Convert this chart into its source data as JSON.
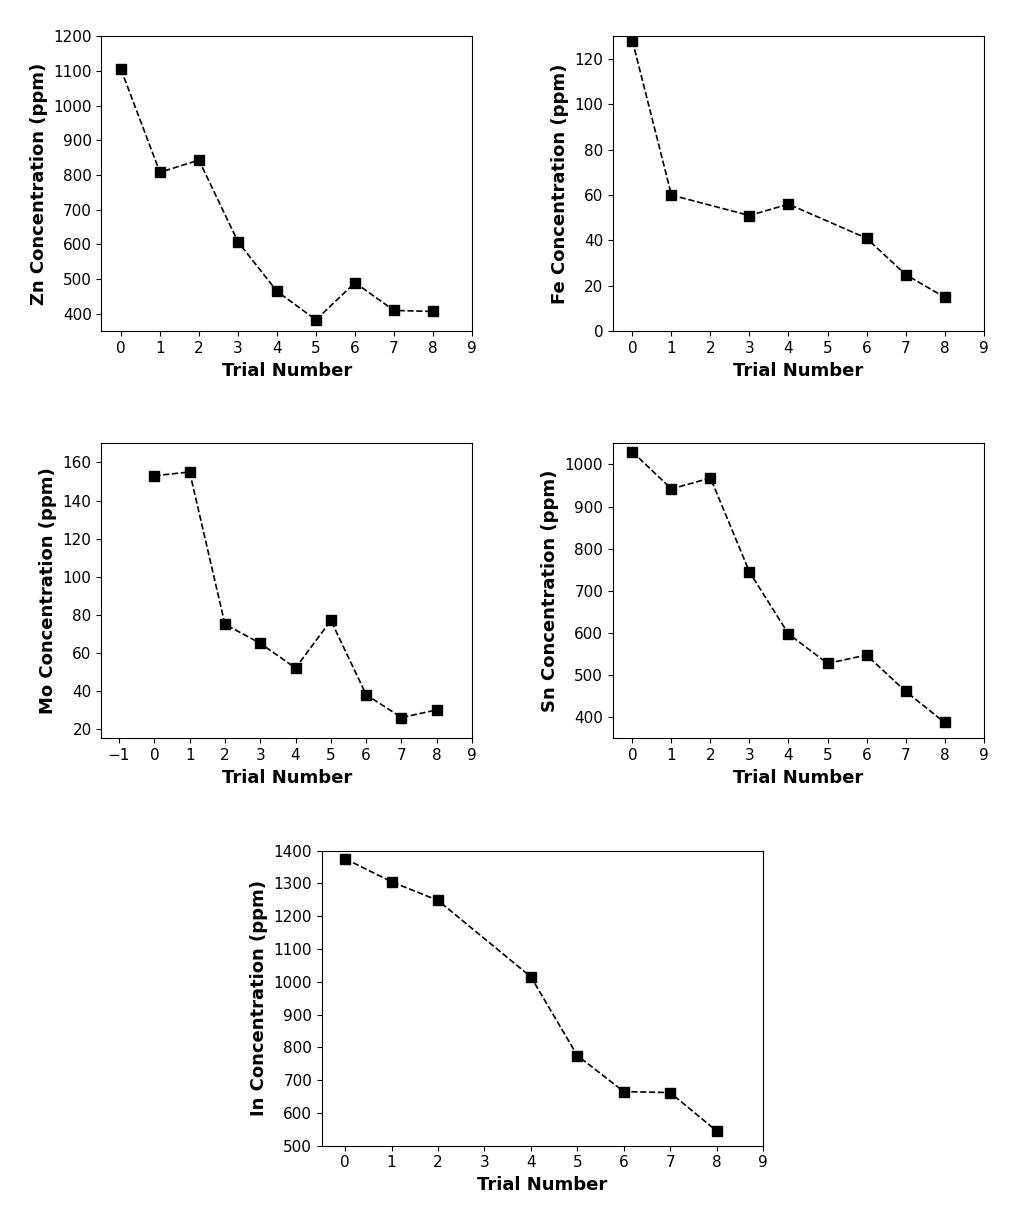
{
  "zn": {
    "x": [
      0,
      1,
      2,
      3,
      4,
      5,
      6,
      7,
      8
    ],
    "y": [
      1105,
      808,
      843,
      608,
      465,
      383,
      490,
      410,
      407
    ],
    "ylabel": "Zn Concentration (ppm)",
    "xlabel": "Trial Number",
    "xlim": [
      -0.5,
      9
    ],
    "ylim": [
      350,
      1200
    ],
    "yticks": [
      400,
      500,
      600,
      700,
      800,
      900,
      1000,
      1100,
      1200
    ],
    "xticks": [
      0,
      1,
      2,
      3,
      4,
      5,
      6,
      7,
      8,
      9
    ]
  },
  "fe": {
    "x": [
      0,
      1,
      3,
      4,
      6,
      7,
      8
    ],
    "y": [
      128,
      60,
      51,
      56,
      41,
      25,
      15
    ],
    "ylabel": "Fe Concentration (ppm)",
    "xlabel": "Trial Number",
    "xlim": [
      -0.5,
      9
    ],
    "ylim": [
      0,
      130
    ],
    "yticks": [
      0,
      20,
      40,
      60,
      80,
      100,
      120
    ],
    "xticks": [
      0,
      1,
      2,
      3,
      4,
      5,
      6,
      7,
      8,
      9
    ]
  },
  "mo": {
    "x": [
      0,
      1,
      2,
      3,
      4,
      5,
      6,
      7,
      8
    ],
    "y": [
      153,
      155,
      75,
      65,
      52,
      77,
      38,
      26,
      30
    ],
    "ylabel": "Mo Concentration (ppm)",
    "xlabel": "Trial Number",
    "xlim": [
      -1.5,
      9
    ],
    "ylim": [
      15,
      170
    ],
    "yticks": [
      20,
      40,
      60,
      80,
      100,
      120,
      140,
      160
    ],
    "xticks": [
      -1,
      0,
      1,
      2,
      3,
      4,
      5,
      6,
      7,
      8,
      9
    ]
  },
  "sn": {
    "x": [
      0,
      1,
      2,
      3,
      4,
      5,
      6,
      7,
      8
    ],
    "y": [
      1030,
      942,
      968,
      745,
      598,
      528,
      548,
      462,
      388
    ],
    "ylabel": "Sn Concentration (ppm)",
    "xlabel": "Trial Number",
    "xlim": [
      -0.5,
      9
    ],
    "ylim": [
      350,
      1050
    ],
    "yticks": [
      400,
      500,
      600,
      700,
      800,
      900,
      1000
    ],
    "xticks": [
      0,
      1,
      2,
      3,
      4,
      5,
      6,
      7,
      8,
      9
    ]
  },
  "in": {
    "x": [
      0,
      1,
      2,
      4,
      5,
      6,
      7,
      8
    ],
    "y": [
      1375,
      1305,
      1248,
      1015,
      775,
      665,
      662,
      545
    ],
    "ylabel": "In Concentration (ppm)",
    "xlabel": "Trial Number",
    "xlim": [
      -0.5,
      9
    ],
    "ylim": [
      500,
      1400
    ],
    "yticks": [
      500,
      600,
      700,
      800,
      900,
      1000,
      1100,
      1200,
      1300,
      1400
    ],
    "xticks": [
      0,
      1,
      2,
      3,
      4,
      5,
      6,
      7,
      8,
      9
    ]
  },
  "marker": "s",
  "marker_size": 7,
  "marker_color": "black",
  "line_color": "black",
  "line_width": 1.2,
  "line_style": "--",
  "label_fontsize": 13,
  "tick_fontsize": 11
}
